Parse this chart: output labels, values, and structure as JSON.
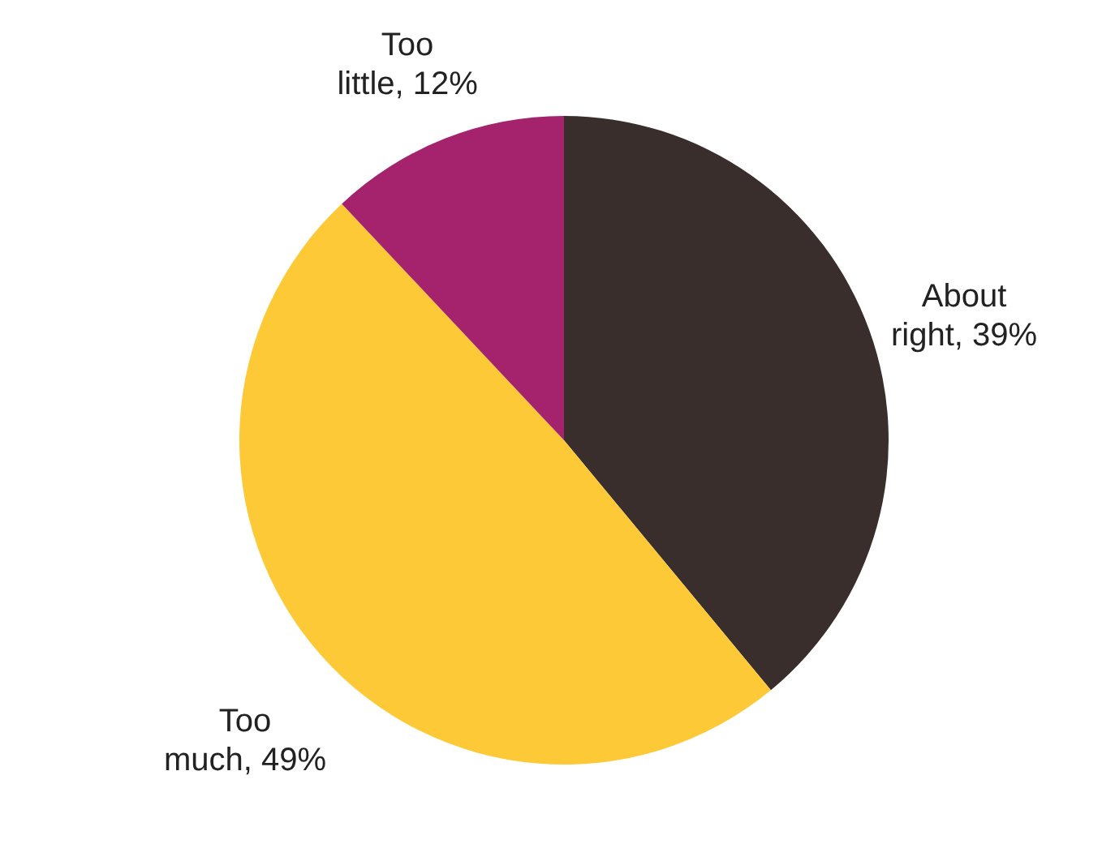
{
  "chart_data": {
    "type": "pie",
    "categories": [
      "About right",
      "Too much",
      "Too little"
    ],
    "values": [
      39,
      49,
      12
    ],
    "colors": [
      "#3a2e2d",
      "#fdc936",
      "#a5226c"
    ],
    "value_labels": [
      "39%",
      "49%",
      "12%"
    ]
  }
}
